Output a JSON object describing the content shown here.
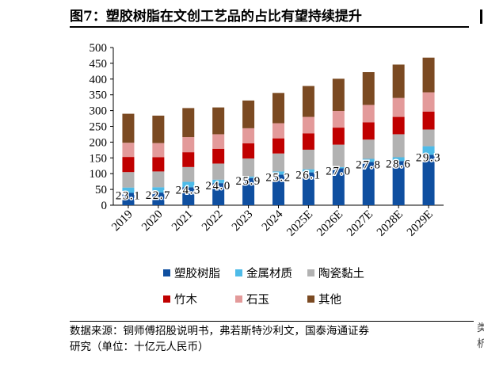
{
  "title": "图7：塑胶树脂在文创工艺品的占比有望持续提升",
  "source_lines": [
    "数据来源：铜师傅招股说明书，弗若斯特沙利文，国泰海通证券",
    "研究（单位：十亿元人民币）"
  ],
  "edge_fragment": [
    "类",
    "析"
  ],
  "chart_data": {
    "type": "bar",
    "stacked": true,
    "categories": [
      "2019",
      "2020",
      "2021",
      "2022",
      "2023",
      "2024",
      "2025E",
      "2026E",
      "2027E",
      "2028E",
      "2029E"
    ],
    "ylim": [
      0,
      500
    ],
    "yticks": [
      0,
      50,
      100,
      150,
      200,
      250,
      300,
      350,
      400,
      450,
      500
    ],
    "grid": false,
    "legend_position": "bottom",
    "series": [
      {
        "name": "塑胶树脂",
        "color": "#0f4fa0",
        "values": [
          39,
          40,
          57,
          70,
          86,
          97,
          104,
          117,
          137,
          140,
          160
        ]
      },
      {
        "name": "金属材质",
        "color": "#4ebbe8",
        "values": [
          17,
          17,
          17,
          11,
          5,
          10,
          10,
          4,
          10,
          12,
          27
        ]
      },
      {
        "name": "陶瓷黏土",
        "color": "#b2b2b2",
        "values": [
          49,
          50,
          47,
          51,
          57,
          57,
          62,
          71,
          61,
          73,
          53
        ]
      },
      {
        "name": "竹木",
        "color": "#c00000",
        "values": [
          48,
          45,
          47,
          47,
          48,
          48,
          52,
          54,
          55,
          55,
          57
        ]
      },
      {
        "name": "石玉",
        "color": "#e39a9a",
        "values": [
          45,
          45,
          48,
          46,
          48,
          48,
          52,
          53,
          55,
          60,
          61
        ]
      },
      {
        "name": "其他",
        "color": "#7b4a22",
        "values": [
          92,
          87,
          92,
          85,
          88,
          96,
          98,
          102,
          104,
          106,
          110
        ]
      }
    ],
    "data_labels": [
      "23.1",
      "22.7",
      "24.3",
      "24.0",
      "25.9",
      "25.2",
      "26.1",
      "27.0",
      "27.8",
      "28.6",
      "29.3"
    ]
  }
}
